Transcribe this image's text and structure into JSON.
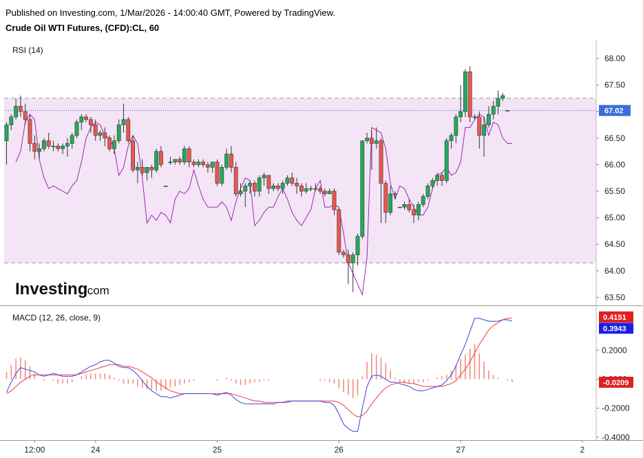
{
  "header": {
    "published": "Published on Investing.com, 1/Mar/2026 - 14:00:40 GMT, Powered by TradingView.",
    "symbol": "Crude Oil WTI Futures, (CFD):CL, 60"
  },
  "logo": {
    "brand": "Investing",
    "suffix": ".com"
  },
  "colors": {
    "up": "#26a69a",
    "up_fill": "#22ab5b",
    "down": "#ef5350",
    "down_fill": "#e8574f",
    "rsi_line": "#9c27b0",
    "rsi_band": "#f3e5f5",
    "macd_line": "#3f3fdd",
    "signal_line": "#ef3b3b",
    "hist_pos": "#f28b82",
    "hist_neg": "#f28b82",
    "price_tag": "#3a6fd8",
    "macd_tag": "#1e1ee0",
    "signal_tag": "#e02020",
    "hist_tag": "#e02020"
  },
  "chart_data": [
    {
      "type": "candlestick",
      "title": "Crude Oil WTI Futures, (CFD):CL, 60",
      "indicator_label": "RSI (14)",
      "price_axis": {
        "ticks": [
          "68.00",
          "67.50",
          "67.00",
          "66.50",
          "66.00",
          "65.50",
          "65.00",
          "64.50",
          "64.00",
          "63.50"
        ],
        "ylim": [
          63.35,
          68.35
        ]
      },
      "last_price": "67.02",
      "rsi_band": {
        "upper": 67.25,
        "lower": 64.15
      },
      "x_axis": {
        "labels": [
          "12:00",
          "24",
          "25",
          "26",
          "27",
          "2"
        ],
        "label_candle_index": [
          6,
          19,
          45,
          71,
          97,
          123
        ]
      },
      "candles": [
        [
          66.45,
          66.8,
          66.0,
          66.75
        ],
        [
          66.75,
          66.95,
          66.65,
          66.9
        ],
        [
          66.9,
          67.25,
          66.85,
          67.1
        ],
        [
          67.1,
          67.3,
          66.9,
          67.0
        ],
        [
          67.0,
          67.15,
          66.75,
          66.85
        ],
        [
          66.85,
          66.95,
          66.25,
          66.4
        ],
        [
          66.4,
          66.55,
          66.1,
          66.25
        ],
        [
          66.25,
          66.4,
          66.1,
          66.3
        ],
        [
          66.3,
          66.5,
          66.25,
          66.45
        ],
        [
          66.45,
          66.6,
          66.3,
          66.35
        ],
        [
          66.35,
          66.45,
          66.25,
          66.35
        ],
        [
          66.35,
          66.4,
          66.25,
          66.3
        ],
        [
          66.3,
          66.4,
          66.2,
          66.35
        ],
        [
          66.35,
          66.5,
          66.15,
          66.4
        ],
        [
          66.4,
          66.6,
          66.3,
          66.55
        ],
        [
          66.55,
          66.85,
          66.5,
          66.8
        ],
        [
          66.8,
          66.95,
          66.65,
          66.9
        ],
        [
          66.9,
          66.95,
          66.8,
          66.85
        ],
        [
          66.85,
          66.9,
          66.6,
          66.75
        ],
        [
          66.75,
          66.85,
          66.45,
          66.55
        ],
        [
          66.55,
          66.65,
          66.45,
          66.6
        ],
        [
          66.6,
          66.7,
          66.35,
          66.5
        ],
        [
          66.5,
          66.55,
          66.25,
          66.3
        ],
        [
          66.3,
          66.55,
          66.2,
          66.45
        ],
        [
          66.45,
          66.85,
          66.4,
          66.75
        ],
        [
          66.75,
          67.15,
          66.6,
          66.85
        ],
        [
          66.85,
          66.9,
          66.4,
          66.45
        ],
        [
          66.45,
          66.55,
          65.85,
          65.9
        ],
        [
          65.9,
          66.05,
          65.65,
          65.95
        ],
        [
          65.95,
          66.1,
          65.8,
          65.85
        ],
        [
          65.85,
          65.95,
          65.7,
          65.95
        ],
        [
          65.95,
          66.0,
          65.75,
          65.9
        ],
        [
          65.9,
          66.3,
          65.85,
          66.25
        ],
        [
          66.25,
          66.35,
          65.95,
          66.0
        ],
        [
          65.6,
          65.6,
          65.6,
          65.6
        ],
        [
          66.05,
          66.15,
          66.0,
          66.05
        ],
        [
          66.05,
          66.1,
          66.0,
          66.1
        ],
        [
          66.1,
          66.15,
          66.0,
          66.05
        ],
        [
          66.05,
          66.35,
          66.0,
          66.3
        ],
        [
          66.3,
          66.35,
          65.95,
          66.05
        ],
        [
          66.05,
          66.1,
          65.95,
          66.0
        ],
        [
          66.0,
          66.1,
          65.95,
          66.05
        ],
        [
          66.05,
          66.1,
          65.95,
          66.0
        ],
        [
          66.0,
          66.05,
          65.85,
          65.95
        ],
        [
          65.95,
          66.05,
          65.85,
          66.05
        ],
        [
          66.05,
          66.1,
          65.6,
          65.65
        ],
        [
          65.65,
          66.0,
          65.6,
          65.95
        ],
        [
          65.95,
          66.3,
          65.9,
          66.2
        ],
        [
          66.2,
          66.35,
          65.85,
          65.95
        ],
        [
          65.95,
          66.05,
          65.4,
          65.45
        ],
        [
          65.45,
          65.65,
          65.4,
          65.5
        ],
        [
          65.5,
          65.65,
          65.2,
          65.6
        ],
        [
          65.6,
          65.7,
          65.45,
          65.65
        ],
        [
          65.65,
          65.7,
          65.4,
          65.5
        ],
        [
          65.5,
          65.8,
          65.4,
          65.75
        ],
        [
          65.75,
          65.85,
          65.6,
          65.8
        ],
        [
          65.8,
          65.8,
          65.45,
          65.55
        ],
        [
          65.55,
          65.65,
          65.5,
          65.6
        ],
        [
          65.6,
          65.65,
          65.5,
          65.55
        ],
        [
          65.55,
          65.7,
          65.45,
          65.65
        ],
        [
          65.65,
          65.8,
          65.6,
          65.75
        ],
        [
          65.75,
          65.85,
          65.6,
          65.65
        ],
        [
          65.65,
          65.75,
          65.45,
          65.6
        ],
        [
          65.6,
          65.65,
          65.4,
          65.5
        ],
        [
          65.5,
          65.65,
          65.45,
          65.55
        ],
        [
          65.55,
          65.6,
          65.5,
          65.55
        ],
        [
          65.55,
          65.65,
          65.5,
          65.55
        ],
        [
          65.55,
          65.6,
          65.45,
          65.5
        ],
        [
          65.5,
          65.55,
          65.4,
          65.45
        ],
        [
          65.45,
          65.55,
          65.45,
          65.5
        ],
        [
          65.5,
          65.55,
          65.05,
          65.15
        ],
        [
          65.15,
          65.2,
          64.3,
          64.35
        ],
        [
          64.35,
          64.4,
          64.25,
          64.3
        ],
        [
          64.3,
          64.4,
          63.75,
          64.15
        ],
        [
          64.15,
          64.35,
          63.6,
          64.3
        ],
        [
          64.3,
          64.7,
          64.1,
          64.65
        ],
        [
          64.65,
          66.45,
          64.6,
          66.45
        ],
        [
          66.45,
          66.6,
          66.4,
          66.5
        ],
        [
          66.5,
          66.65,
          65.9,
          66.4
        ],
        [
          66.4,
          66.7,
          66.3,
          66.45
        ],
        [
          66.45,
          66.5,
          64.9,
          65.65
        ],
        [
          65.65,
          65.7,
          64.9,
          65.1
        ],
        [
          65.1,
          65.6,
          65.05,
          65.45
        ],
        [
          65.45,
          65.5,
          65.35,
          65.45
        ],
        [
          65.2,
          65.2,
          65.2,
          65.2
        ],
        [
          65.2,
          65.3,
          65.15,
          65.25
        ],
        [
          65.25,
          65.35,
          65.1,
          65.15
        ],
        [
          65.15,
          65.25,
          64.9,
          65.05
        ],
        [
          65.05,
          65.3,
          64.95,
          65.25
        ],
        [
          65.25,
          65.45,
          65.2,
          65.4
        ],
        [
          65.4,
          65.65,
          65.35,
          65.6
        ],
        [
          65.6,
          65.75,
          65.55,
          65.7
        ],
        [
          65.7,
          65.85,
          65.6,
          65.8
        ],
        [
          65.8,
          65.85,
          65.6,
          65.7
        ],
        [
          65.7,
          66.5,
          65.65,
          66.45
        ],
        [
          66.45,
          66.6,
          66.3,
          66.55
        ],
        [
          66.55,
          66.95,
          66.4,
          66.9
        ],
        [
          66.9,
          67.5,
          66.8,
          67.0
        ],
        [
          67.0,
          67.8,
          66.9,
          67.75
        ],
        [
          67.75,
          67.85,
          66.8,
          66.9
        ],
        [
          66.9,
          66.95,
          66.85,
          66.9
        ],
        [
          66.9,
          67.0,
          66.3,
          66.55
        ],
        [
          66.55,
          66.9,
          66.15,
          66.75
        ],
        [
          66.75,
          67.1,
          66.7,
          66.95
        ],
        [
          66.95,
          67.2,
          66.85,
          67.1
        ],
        [
          67.1,
          67.4,
          66.95,
          67.25
        ],
        [
          67.25,
          67.35,
          67.2,
          67.3
        ],
        [
          67.02,
          67.02,
          67.02,
          67.02
        ]
      ],
      "rsi_values": [
        66.05,
        66.25,
        66.8,
        66.95,
        66.85,
        66.1,
        65.75,
        65.55,
        65.6,
        65.55,
        65.5,
        65.45,
        65.6,
        65.7,
        66.05,
        66.5,
        66.7,
        66.8,
        66.75,
        66.55,
        66.5,
        66.3,
        65.8,
        65.95,
        66.35,
        66.55,
        66.4,
        65.75,
        64.9,
        65.05,
        64.95,
        65.1,
        65.05,
        64.9,
        65.35,
        65.5,
        65.45,
        65.55,
        65.9,
        65.6,
        65.35,
        65.2,
        65.2,
        65.2,
        65.3,
        65.2,
        64.95,
        65.3,
        65.55,
        65.75,
        65.7,
        64.85,
        64.95,
        65.1,
        65.2,
        65.2,
        65.4,
        65.55,
        65.35,
        65.1,
        64.95,
        64.85,
        65.0,
        65.15,
        65.55,
        65.7,
        65.2,
        65.2,
        65.25,
        65.2,
        64.7,
        64.15,
        63.95,
        63.75,
        63.55,
        64.25,
        66.7,
        66.65,
        66.6,
        66.3,
        65.65,
        65.35,
        65.6,
        65.55,
        65.35,
        65.2,
        65.05,
        65.05,
        65.2,
        65.55,
        65.8,
        65.85,
        65.95,
        65.8,
        65.85,
        66.05,
        66.7,
        66.7,
        66.85,
        66.95,
        66.9,
        66.55,
        66.8,
        66.75,
        66.5,
        66.4,
        66.4
      ],
      "rsi_x_offset": 2
    },
    {
      "type": "macd",
      "label": "MACD (12, 26, close, 9)",
      "y_axis": {
        "ticks": [
          "0.2000",
          "0.0000",
          "-0.2000",
          "-0.4000"
        ],
        "ylim": [
          -0.42,
          0.5
        ]
      },
      "tags": {
        "signal": "0.4151",
        "macd": "0.3943",
        "hist": "-0.0209"
      },
      "macd_values": [
        -0.09,
        -0.02,
        0.04,
        0.08,
        0.07,
        0.06,
        0.05,
        0.03,
        0.02,
        0.03,
        0.04,
        0.03,
        0.02,
        0.02,
        0.02,
        0.03,
        0.05,
        0.07,
        0.09,
        0.1,
        0.12,
        0.13,
        0.13,
        0.11,
        0.09,
        0.08,
        0.08,
        0.06,
        0.03,
        -0.01,
        -0.05,
        -0.08,
        -0.1,
        -0.12,
        -0.12,
        -0.13,
        -0.12,
        -0.11,
        -0.1,
        -0.1,
        -0.1,
        -0.1,
        -0.1,
        -0.1,
        -0.1,
        -0.11,
        -0.1,
        -0.09,
        -0.11,
        -0.14,
        -0.16,
        -0.17,
        -0.17,
        -0.17,
        -0.17,
        -0.17,
        -0.17,
        -0.17,
        -0.16,
        -0.16,
        -0.15,
        -0.15,
        -0.15,
        -0.15,
        -0.15,
        -0.15,
        -0.15,
        -0.15,
        -0.16,
        -0.16,
        -0.18,
        -0.24,
        -0.31,
        -0.34,
        -0.36,
        -0.36,
        -0.2,
        -0.05,
        0.02,
        0.03,
        0.02,
        0.0,
        -0.02,
        -0.02,
        -0.03,
        -0.04,
        -0.05,
        -0.07,
        -0.08,
        -0.08,
        -0.07,
        -0.06,
        -0.05,
        -0.04,
        -0.01,
        0.03,
        0.09,
        0.17,
        0.24,
        0.33,
        0.42,
        0.42,
        0.41,
        0.4,
        0.4,
        0.4,
        0.41,
        0.41,
        0.4
      ],
      "signal_values": [
        -0.1,
        -0.08,
        -0.05,
        -0.02,
        0.0,
        0.02,
        0.03,
        0.03,
        0.03,
        0.03,
        0.03,
        0.03,
        0.03,
        0.03,
        0.03,
        0.03,
        0.04,
        0.05,
        0.06,
        0.07,
        0.08,
        0.09,
        0.1,
        0.1,
        0.1,
        0.09,
        0.09,
        0.08,
        0.07,
        0.05,
        0.03,
        0.01,
        -0.02,
        -0.04,
        -0.06,
        -0.08,
        -0.09,
        -0.1,
        -0.1,
        -0.1,
        -0.1,
        -0.1,
        -0.1,
        -0.1,
        -0.1,
        -0.1,
        -0.1,
        -0.1,
        -0.1,
        -0.11,
        -0.12,
        -0.13,
        -0.14,
        -0.15,
        -0.15,
        -0.16,
        -0.16,
        -0.16,
        -0.16,
        -0.16,
        -0.16,
        -0.15,
        -0.15,
        -0.15,
        -0.15,
        -0.15,
        -0.15,
        -0.15,
        -0.15,
        -0.15,
        -0.15,
        -0.16,
        -0.18,
        -0.21,
        -0.24,
        -0.26,
        -0.25,
        -0.22,
        -0.17,
        -0.13,
        -0.09,
        -0.06,
        -0.04,
        -0.03,
        -0.02,
        -0.02,
        -0.03,
        -0.03,
        -0.04,
        -0.05,
        -0.05,
        -0.05,
        -0.05,
        -0.05,
        -0.04,
        -0.03,
        -0.01,
        0.03,
        0.07,
        0.12,
        0.18,
        0.24,
        0.29,
        0.34,
        0.37,
        0.39,
        0.41,
        0.42,
        0.42
      ],
      "histogram": [
        0.05,
        0.1,
        0.14,
        0.15,
        0.13,
        0.09,
        0.04,
        0.0,
        -0.01,
        0.0,
        -0.01,
        -0.03,
        -0.03,
        -0.03,
        -0.02,
        0.0,
        0.02,
        0.03,
        0.04,
        0.04,
        0.04,
        0.04,
        0.03,
        0.01,
        -0.01,
        -0.03,
        -0.03,
        -0.03,
        -0.05,
        -0.06,
        -0.07,
        -0.07,
        -0.08,
        -0.08,
        -0.07,
        -0.06,
        -0.05,
        -0.04,
        -0.03,
        -0.02,
        -0.01,
        0.0,
        0.0,
        0.0,
        0.0,
        -0.01,
        0.0,
        0.01,
        -0.01,
        -0.03,
        -0.04,
        -0.04,
        -0.03,
        -0.02,
        -0.02,
        -0.01,
        -0.01,
        0.0,
        0.0,
        0.0,
        0.0,
        0.0,
        0.0,
        0.0,
        0.0,
        0.0,
        0.0,
        -0.01,
        -0.01,
        -0.02,
        -0.03,
        -0.06,
        -0.09,
        -0.11,
        -0.13,
        -0.11,
        0.02,
        0.12,
        0.18,
        0.17,
        0.15,
        0.11,
        0.06,
        0.01,
        -0.02,
        -0.03,
        -0.03,
        -0.03,
        -0.02,
        -0.02,
        -0.01,
        0.0,
        0.01,
        0.02,
        0.03,
        0.06,
        0.1,
        0.14,
        0.17,
        0.21,
        0.24,
        0.18,
        0.12,
        0.06,
        0.03,
        0.01,
        0.0,
        -0.01,
        -0.02
      ],
      "x_offset": 0
    }
  ]
}
